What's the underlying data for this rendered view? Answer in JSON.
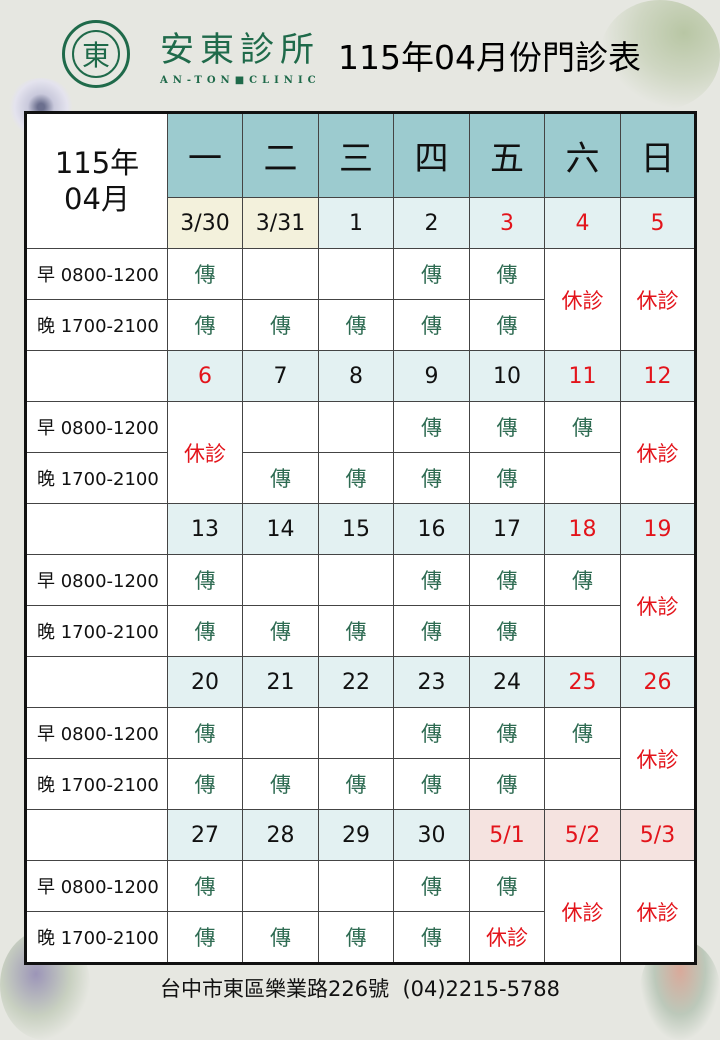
{
  "header": {
    "logo_char": "東",
    "logo_ring_text": "AN-TON CLINIC 安東診所",
    "brand_name": "安東診所",
    "brand_en": "AN-TON■CLINIC",
    "title": "115年04月份門診表"
  },
  "colors": {
    "header_bg": "#9ccbcf",
    "date_bg": "#e3f1f2",
    "prev_month_bg": "#f3f1dc",
    "next_month_bg": "#f5e3e0",
    "doctor_text": "#2e6b52",
    "closed_text": "#e3141b"
  },
  "table": {
    "corner_year": "115年",
    "corner_month": "04月",
    "weekdays": [
      "一",
      "二",
      "三",
      "四",
      "五",
      "六",
      "日"
    ],
    "morning_label": "早 0800-1200",
    "evening_label": "晚 1700-2100",
    "weeks": [
      {
        "dates": [
          {
            "t": "3/30",
            "bg": "prev"
          },
          {
            "t": "3/31",
            "bg": "prev"
          },
          {
            "t": "1"
          },
          {
            "t": "2"
          },
          {
            "t": "3",
            "red": true
          },
          {
            "t": "4",
            "red": true
          },
          {
            "t": "5",
            "red": true
          }
        ],
        "morning": [
          {
            "t": "傳"
          },
          {
            "t": ""
          },
          {
            "t": ""
          },
          {
            "t": "傳"
          },
          {
            "t": "傳"
          },
          {
            "t": "休診",
            "span": 2
          },
          {
            "t": "休診",
            "span": 2
          }
        ],
        "evening": [
          {
            "t": "傳"
          },
          {
            "t": "傳"
          },
          {
            "t": "傳"
          },
          {
            "t": "傳"
          },
          {
            "t": "傳"
          },
          null,
          null
        ]
      },
      {
        "dates": [
          {
            "t": "6",
            "red": true
          },
          {
            "t": "7"
          },
          {
            "t": "8"
          },
          {
            "t": "9"
          },
          {
            "t": "10"
          },
          {
            "t": "11",
            "red": true
          },
          {
            "t": "12",
            "red": true
          }
        ],
        "morning": [
          {
            "t": "休診",
            "span": 2
          },
          {
            "t": ""
          },
          {
            "t": ""
          },
          {
            "t": "傳"
          },
          {
            "t": "傳"
          },
          {
            "t": "傳"
          },
          {
            "t": "休診",
            "span": 2
          }
        ],
        "evening": [
          null,
          {
            "t": "傳"
          },
          {
            "t": "傳"
          },
          {
            "t": "傳"
          },
          {
            "t": "傳"
          },
          {
            "t": ""
          },
          null
        ]
      },
      {
        "dates": [
          {
            "t": "13"
          },
          {
            "t": "14"
          },
          {
            "t": "15"
          },
          {
            "t": "16"
          },
          {
            "t": "17"
          },
          {
            "t": "18",
            "red": true
          },
          {
            "t": "19",
            "red": true
          }
        ],
        "morning": [
          {
            "t": "傳"
          },
          {
            "t": ""
          },
          {
            "t": ""
          },
          {
            "t": "傳"
          },
          {
            "t": "傳"
          },
          {
            "t": "傳"
          },
          {
            "t": "休診",
            "span": 2
          }
        ],
        "evening": [
          {
            "t": "傳"
          },
          {
            "t": "傳"
          },
          {
            "t": "傳"
          },
          {
            "t": "傳"
          },
          {
            "t": "傳"
          },
          {
            "t": ""
          },
          null
        ]
      },
      {
        "dates": [
          {
            "t": "20"
          },
          {
            "t": "21"
          },
          {
            "t": "22"
          },
          {
            "t": "23"
          },
          {
            "t": "24"
          },
          {
            "t": "25",
            "red": true
          },
          {
            "t": "26",
            "red": true
          }
        ],
        "morning": [
          {
            "t": "傳"
          },
          {
            "t": ""
          },
          {
            "t": ""
          },
          {
            "t": "傳"
          },
          {
            "t": "傳"
          },
          {
            "t": "傳"
          },
          {
            "t": "休診",
            "span": 2
          }
        ],
        "evening": [
          {
            "t": "傳"
          },
          {
            "t": "傳"
          },
          {
            "t": "傳"
          },
          {
            "t": "傳"
          },
          {
            "t": "傳"
          },
          {
            "t": ""
          },
          null
        ]
      },
      {
        "dates": [
          {
            "t": "27"
          },
          {
            "t": "28"
          },
          {
            "t": "29"
          },
          {
            "t": "30"
          },
          {
            "t": "5/1",
            "red": true,
            "bg": "next"
          },
          {
            "t": "5/2",
            "red": true,
            "bg": "next"
          },
          {
            "t": "5/3",
            "red": true,
            "bg": "next"
          }
        ],
        "morning": [
          {
            "t": "傳"
          },
          {
            "t": ""
          },
          {
            "t": ""
          },
          {
            "t": "傳"
          },
          {
            "t": "傳"
          },
          {
            "t": "休診",
            "span": 2
          },
          {
            "t": "休診",
            "span": 2
          }
        ],
        "evening": [
          {
            "t": "傳"
          },
          {
            "t": "傳"
          },
          {
            "t": "傳"
          },
          {
            "t": "傳"
          },
          {
            "t": "休診"
          },
          null,
          null
        ]
      }
    ]
  },
  "footer": {
    "address": "台中市東區樂業路226號",
    "phone": "(04)2215-5788"
  }
}
